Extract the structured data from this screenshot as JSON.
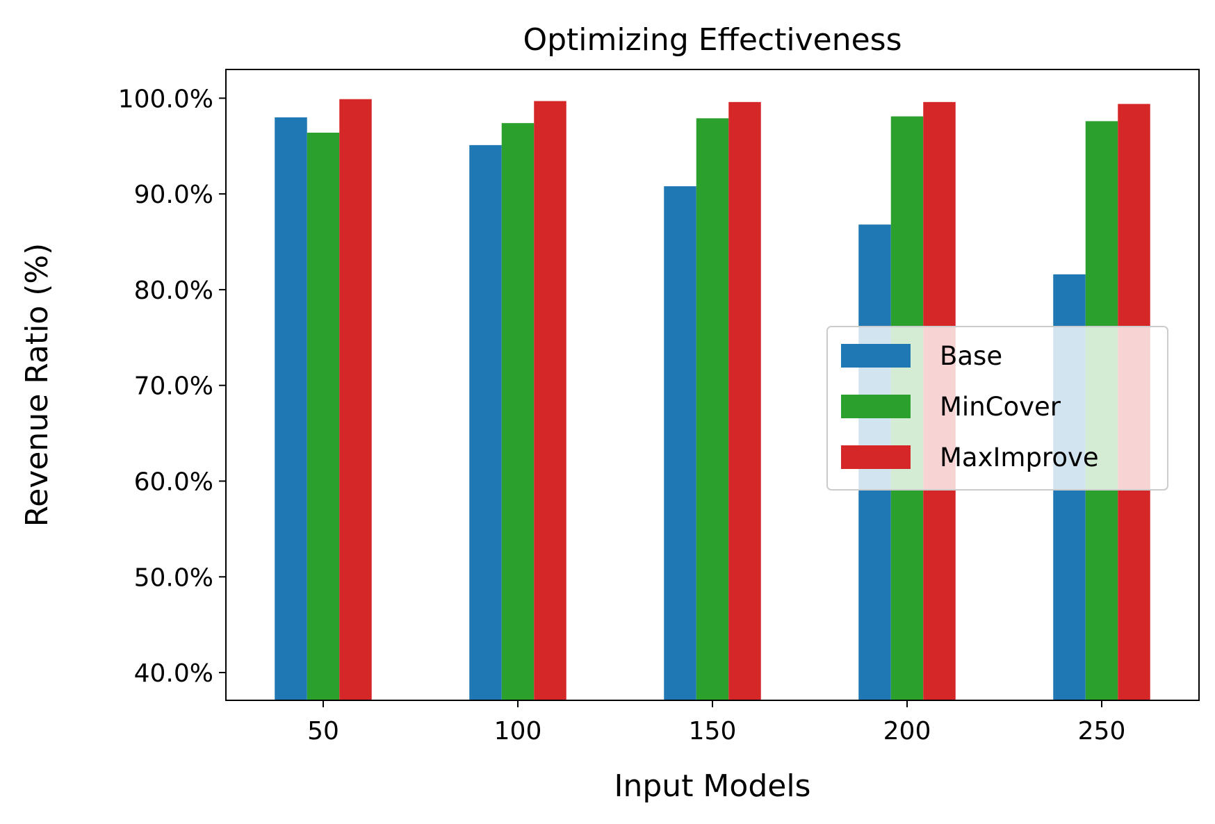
{
  "chart_data": {
    "type": "bar",
    "title": "Optimizing Effectiveness",
    "xlabel": "Input Models",
    "ylabel": "Revenue Ratio (%)",
    "categories": [
      "50",
      "100",
      "150",
      "200",
      "250"
    ],
    "series": [
      {
        "name": "Base",
        "color": "#1f77b4",
        "values": [
          98.0,
          95.1,
          90.8,
          86.8,
          81.6
        ]
      },
      {
        "name": "MinCover",
        "color": "#2ca02c",
        "values": [
          96.4,
          97.4,
          97.9,
          98.1,
          97.6
        ]
      },
      {
        "name": "MaxImprove",
        "color": "#d62728",
        "values": [
          99.9,
          99.7,
          99.6,
          99.6,
          99.4
        ]
      }
    ],
    "yticks": [
      "40.0%",
      "50.0%",
      "60.0%",
      "70.0%",
      "80.0%",
      "90.0%",
      "100.0%"
    ],
    "ylim": [
      37.1,
      103.0
    ],
    "grid": false,
    "legend_position": "center-right"
  }
}
